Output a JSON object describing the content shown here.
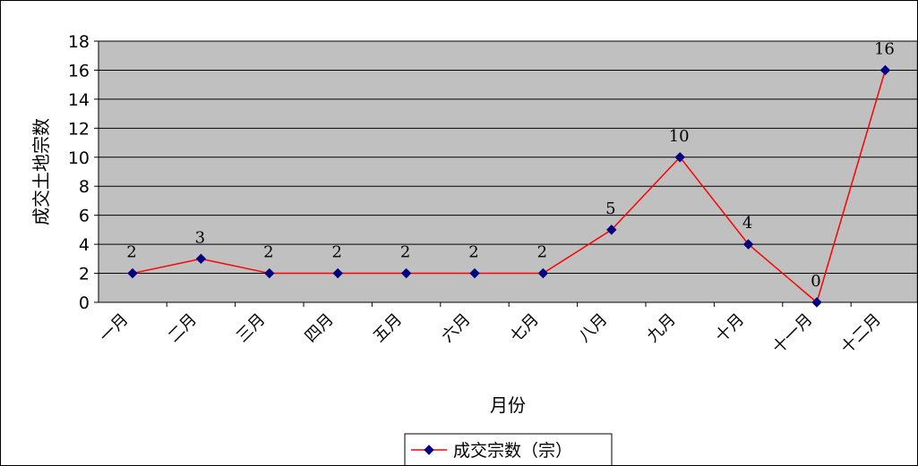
{
  "chart_data": {
    "type": "line",
    "title": "",
    "xlabel": "月份",
    "ylabel": "成交土地宗数",
    "ylim": [
      0,
      18
    ],
    "yticks": [
      0,
      2,
      4,
      6,
      8,
      10,
      12,
      14,
      16,
      18
    ],
    "grid": true,
    "legend_position": "bottom",
    "plot_background": "#C0C0C0",
    "categories": [
      "一月",
      "二月",
      "三月",
      "四月",
      "五月",
      "六月",
      "七月",
      "八月",
      "九月",
      "十月",
      "十一月",
      "十二月"
    ],
    "series": [
      {
        "name": "成交宗数（宗）",
        "values": [
          2,
          3,
          2,
          2,
          2,
          2,
          2,
          5,
          10,
          4,
          0,
          16
        ],
        "line_color": "#FF0000",
        "marker_color": "#000080",
        "marker": "diamond"
      }
    ]
  }
}
